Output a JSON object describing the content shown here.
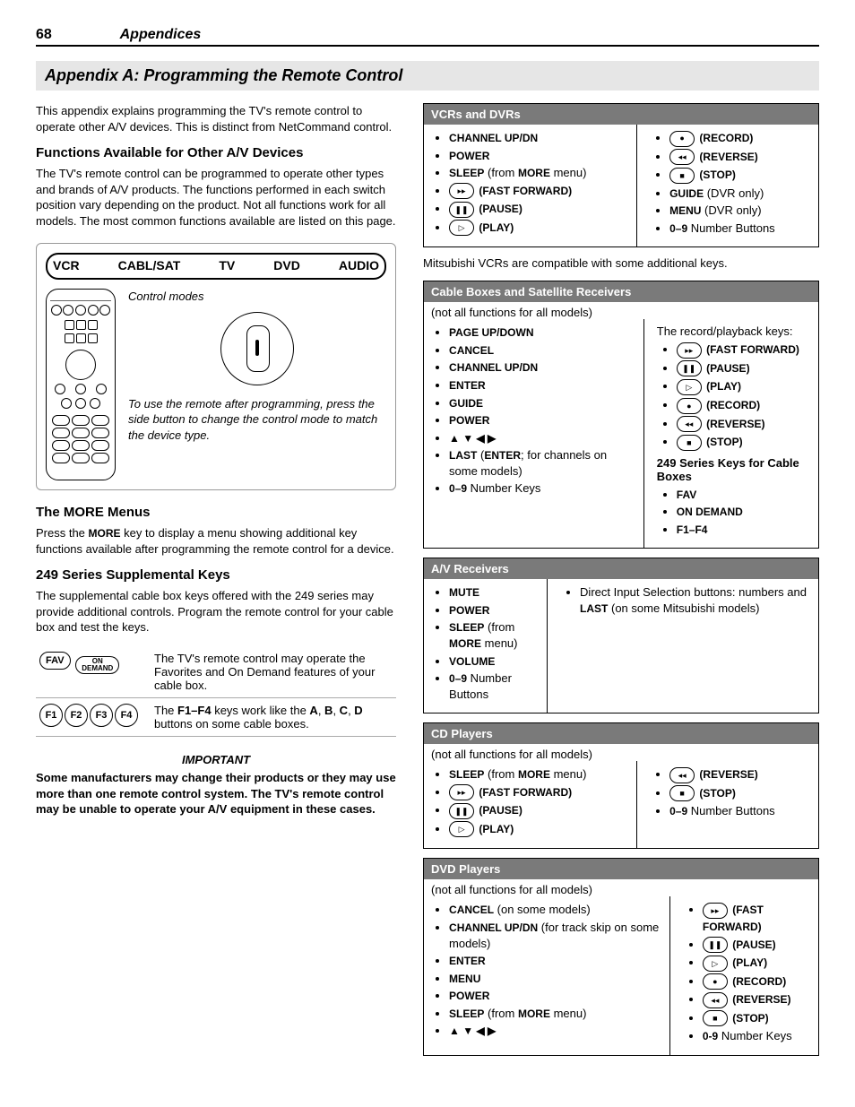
{
  "header": {
    "page_number": "68",
    "section": "Appendices"
  },
  "title_bar": "Appendix A:  Programming the Remote Control",
  "intro": "This appendix explains programming the TV's remote control to operate other A/V devices.  This is distinct from NetCommand control.",
  "left": {
    "h_functions": "Functions Available for Other A/V Devices",
    "p_functions": "The TV's remote control can be programmed to operate other types and brands of A/V products. The functions performed in each switch position vary depending on the product.  Not all functions work for all models.  The most common functions available are listed on this page.",
    "figure": {
      "labels": [
        "VCR",
        "CABL/SAT",
        "TV",
        "DVD",
        "AUDIO"
      ],
      "caption_top": "Control modes",
      "caption_body": "To use the remote after programming, press the side button to change the control mode to match the device type."
    },
    "h_more": "The MORE Menus",
    "p_more_pre": "Press the ",
    "p_more_key": "MORE",
    "p_more_post": " key to display a menu showing additional key functions available after programming the remote control for a device.",
    "h_249": "249 Series Supplemental Keys",
    "p_249": "The supplemental cable box keys offered with the 249 series may provide additional controls.  Program the remote control for your cable box and test the keys.",
    "supp_rows": [
      {
        "keys": [
          "FAV",
          "ON\nDEMAND"
        ],
        "text": "The TV's remote control may operate the Favorites and On Demand features of your cable box."
      },
      {
        "keys": [
          "F1",
          "F2",
          "F3",
          "F4"
        ],
        "text_pre": "The ",
        "text_bold1": "F1–F4",
        "text_mid": " keys work like the  ",
        "text_bold2": "A",
        "sep1": ", ",
        "text_bold3": "B",
        "sep2": ", ",
        "text_bold4": "C",
        "sep3": ", ",
        "text_bold5": "D",
        "text_post": " buttons on some cable boxes."
      }
    ],
    "important_head": "IMPORTANT",
    "important_body": "Some manufacturers may change their products or they may use more than one remote control system.  The TV's remote control may be unable to operate your A/V equipment in these cases."
  },
  "right": {
    "vcr": {
      "title": "VCRs and DVRs",
      "col1": [
        {
          "bold": "CHANNEL UP/DN"
        },
        {
          "bold": "POWER"
        },
        {
          "bold": "SLEEP",
          "post": " (from ",
          "bold2": "MORE",
          "post2": " menu)"
        },
        {
          "sym": "▸▸",
          "bold": " (FAST FORWARD)"
        },
        {
          "sym": "❚❚",
          "bold": " (PAUSE)"
        },
        {
          "sym": "▷",
          "bold": " (PLAY)"
        }
      ],
      "col2": [
        {
          "sym": "●",
          "bold": " (RECORD)"
        },
        {
          "sym": "◂◂",
          "bold": " (REVERSE)"
        },
        {
          "sym": "■",
          "bold": " (STOP)"
        },
        {
          "bold": "GUIDE",
          "post": " (DVR only)"
        },
        {
          "bold": "MENU",
          "post": " (DVR only)"
        },
        {
          "bold": "0–9",
          "post": " Number Buttons"
        }
      ],
      "footnote": "Mitsubishi VCRs are compatible with some additional keys."
    },
    "cable": {
      "title": "Cable Boxes and Satellite Receivers",
      "note": "(not all functions for all models)",
      "col1": [
        {
          "bold": "PAGE UP/DOWN"
        },
        {
          "bold": "CANCEL"
        },
        {
          "bold": "CHANNEL UP/DN"
        },
        {
          "bold": "ENTER"
        },
        {
          "bold": "GUIDE"
        },
        {
          "bold": "POWER"
        },
        {
          "bold": "▲ ▼ ◀ ▶"
        },
        {
          "bold": "LAST",
          "post": " (",
          "bold2": "ENTER",
          "post2": "; for channels on some models)"
        },
        {
          "bold": "0–9",
          "post": " Number Keys"
        }
      ],
      "col2_intro": "The record/playback keys:",
      "col2": [
        {
          "sym": "▸▸",
          "bold": " (FAST FORWARD)"
        },
        {
          "sym": "❚❚",
          "bold": " (PAUSE)"
        },
        {
          "sym": "▷",
          "bold": " (PLAY)"
        },
        {
          "sym": "●",
          "bold": " (RECORD)"
        },
        {
          "sym": "◂◂",
          "bold": " (REVERSE)"
        },
        {
          "sym": "■",
          "bold": " (STOP)"
        }
      ],
      "sub249_title": "249 Series Keys for Cable Boxes",
      "sub249": [
        {
          "bold": "FAV"
        },
        {
          "bold": "ON DEMAND"
        },
        {
          "bold": "F1–F4"
        }
      ]
    },
    "av": {
      "title": "A/V Receivers",
      "col1": [
        {
          "bold": "MUTE"
        },
        {
          "bold": "POWER"
        },
        {
          "bold": "SLEEP",
          "post": " (from ",
          "bold2": "MORE",
          "post2": " menu)"
        },
        {
          "bold": "VOLUME"
        },
        {
          "bold": "0–9",
          "post": " Number Buttons"
        }
      ],
      "col2_text_pre": "Direct Input Selection buttons:  numbers and ",
      "col2_text_bold": "LAST",
      "col2_text_post": " (on some Mitsubishi models)"
    },
    "cd": {
      "title": "CD Players",
      "note": "(not all functions for all models)",
      "col1": [
        {
          "bold": "SLEEP",
          "post": " (from ",
          "bold2": "MORE",
          "post2": " menu)"
        },
        {
          "sym": "▸▸",
          "bold": " (FAST FORWARD)"
        },
        {
          "sym": "❚❚",
          "bold": " (PAUSE)"
        },
        {
          "sym": "▷",
          "bold": " (PLAY)"
        }
      ],
      "col2": [
        {
          "sym": "◂◂",
          "bold": " (REVERSE)"
        },
        {
          "sym": "■",
          "bold": " (STOP)"
        },
        {
          "bold": "0–9",
          "post": " Number Buttons"
        }
      ]
    },
    "dvd": {
      "title": "DVD Players",
      "note": "(not all functions for all models)",
      "col1": [
        {
          "bold": "CANCEL",
          "post": " (on some models)"
        },
        {
          "bold": "CHANNEL UP/DN",
          "post": " (for track skip on some models)"
        },
        {
          "bold": "ENTER"
        },
        {
          "bold": "MENU"
        },
        {
          "bold": "POWER"
        },
        {
          "bold": "SLEEP",
          "post": " (from ",
          "bold2": "MORE",
          "post2": " menu)"
        },
        {
          "bold": "▲ ▼ ◀ ▶"
        }
      ],
      "col2": [
        {
          "sym": "▸▸",
          "bold": " (FAST FORWARD)"
        },
        {
          "sym": "❚❚",
          "bold": " (PAUSE)"
        },
        {
          "sym": "▷",
          "bold": " (PLAY)"
        },
        {
          "sym": "●",
          "bold": " (RECORD)"
        },
        {
          "sym": "◂◂",
          "bold": " (REVERSE)"
        },
        {
          "sym": "■",
          "bold": " (STOP)"
        },
        {
          "bold": "0-9",
          "post": " Number Keys"
        }
      ]
    }
  }
}
